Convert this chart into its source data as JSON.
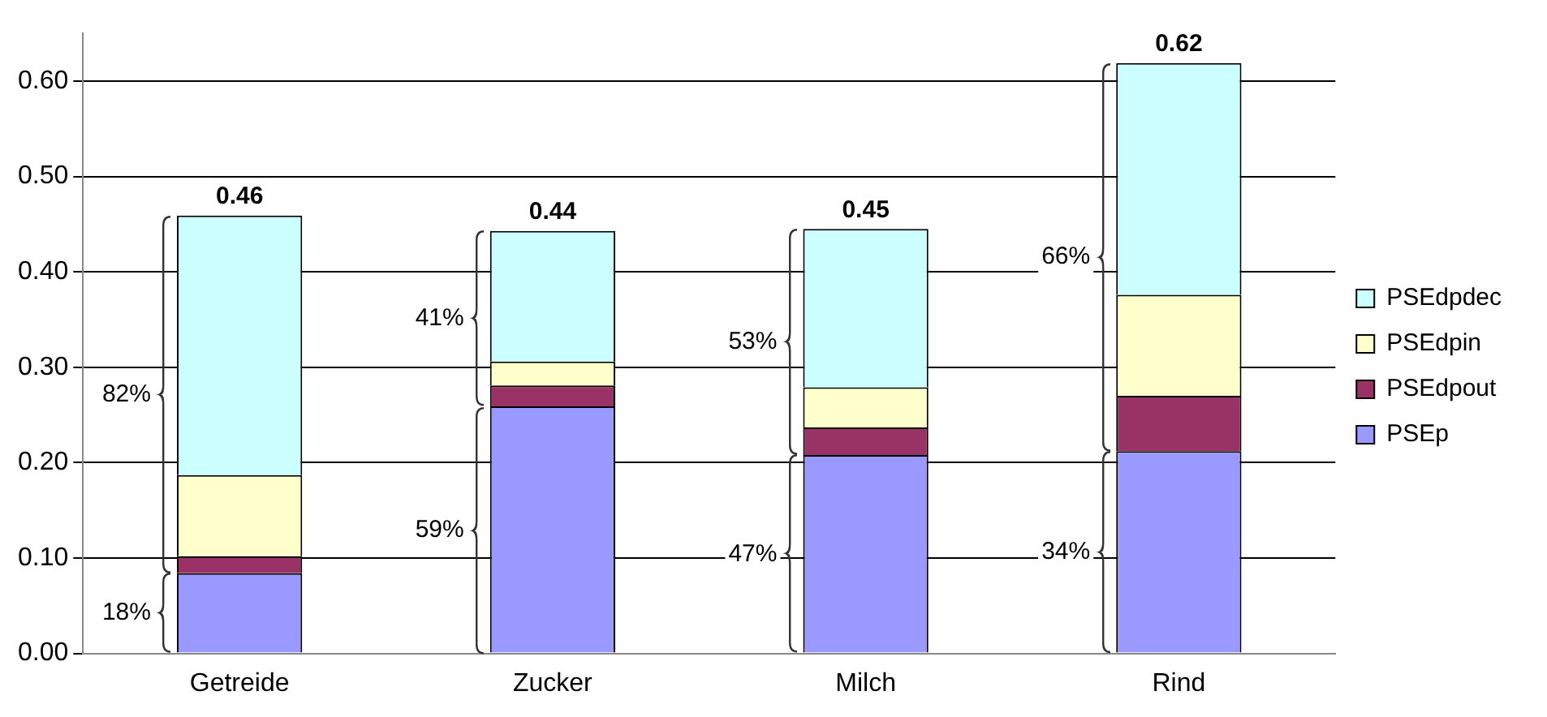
{
  "chart_data": {
    "type": "bar",
    "stacked": true,
    "categories": [
      "Getreide",
      "Zucker",
      "Milch",
      "Rind"
    ],
    "series": [
      {
        "name": "PSEp",
        "color": "#9999ff",
        "values": [
          0.084,
          0.259,
          0.208,
          0.212
        ]
      },
      {
        "name": "PSEdpout",
        "color": "#993366",
        "values": [
          0.018,
          0.022,
          0.029,
          0.058
        ]
      },
      {
        "name": "PSEdpin",
        "color": "#ffffcc",
        "values": [
          0.085,
          0.025,
          0.042,
          0.106
        ]
      },
      {
        "name": "PSEdpdec",
        "color": "#ccffff",
        "values": [
          0.272,
          0.137,
          0.166,
          0.243
        ]
      }
    ],
    "totals": [
      "0.46",
      "0.44",
      "0.45",
      "0.62"
    ],
    "annotations": [
      "18%",
      "82%",
      "59%",
      "41%",
      "47%",
      "53%",
      "34%",
      "66%"
    ],
    "ylim": [
      0,
      0.65
    ],
    "yticks": [
      {
        "value": 0,
        "label": "0.00"
      },
      {
        "value": 0.1,
        "label": "0.10"
      },
      {
        "value": 0.2,
        "label": "0.20"
      },
      {
        "value": 0.3,
        "label": "0.30"
      },
      {
        "value": 0.4,
        "label": "0.40"
      },
      {
        "value": 0.5,
        "label": "0.50"
      },
      {
        "value": 0.6,
        "label": "0.60"
      }
    ],
    "grid": "y",
    "legend": "right"
  }
}
